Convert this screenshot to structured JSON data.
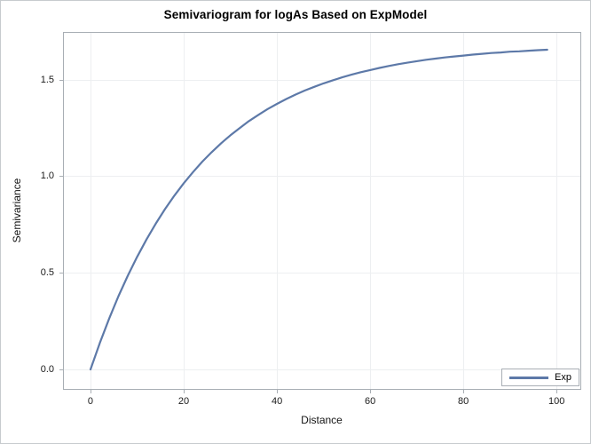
{
  "figure": {
    "title": "Semivariogram for logAs Based on ExpModel",
    "xlabel": "Distance",
    "ylabel": "Semivariance",
    "legend_label": "Exp"
  },
  "colors": {
    "curve": "#5d79a8",
    "axis_frame": "#a8aeb4",
    "gridline": "#edeff1",
    "outer_border": "#c7cbce",
    "title_text": "#000000",
    "tick_text": "#1a1a1a",
    "background": "#ffffff"
  },
  "chart_data": {
    "type": "line",
    "title": "Semivariogram for logAs Based on ExpModel",
    "xlabel": "Distance",
    "ylabel": "Semivariance",
    "xlim": [
      -5.9,
      105.1
    ],
    "ylim": [
      -0.101,
      1.746
    ],
    "xticks": [
      0,
      20,
      40,
      60,
      80,
      100
    ],
    "xtick_labels": [
      "0",
      "20",
      "40",
      "60",
      "80",
      "100"
    ],
    "yticks": [
      0,
      0.5,
      1,
      1.5
    ],
    "ytick_labels": [
      "0.0",
      "0.5",
      "1.0",
      "1.5"
    ],
    "grid": true,
    "legend_position": "inside-bottom-right",
    "series": [
      {
        "name": "Exp",
        "x": [
          0,
          2,
          4,
          6,
          8,
          10,
          12,
          14,
          16,
          18,
          20,
          22,
          24,
          26,
          28,
          30,
          32,
          34,
          36,
          38,
          40,
          42,
          44,
          46,
          48,
          50,
          52,
          54,
          56,
          58,
          60,
          62,
          64,
          66,
          68,
          70,
          72,
          74,
          76,
          78,
          80,
          82,
          84,
          86,
          88,
          90,
          92,
          94,
          96,
          98
        ],
        "y": [
          0.0,
          0.137,
          0.263,
          0.379,
          0.485,
          0.582,
          0.672,
          0.754,
          0.83,
          0.899,
          0.963,
          1.021,
          1.075,
          1.124,
          1.17,
          1.211,
          1.249,
          1.285,
          1.317,
          1.347,
          1.374,
          1.399,
          1.422,
          1.443,
          1.462,
          1.48,
          1.496,
          1.511,
          1.525,
          1.538,
          1.549,
          1.56,
          1.57,
          1.579,
          1.587,
          1.595,
          1.602,
          1.608,
          1.614,
          1.619,
          1.624,
          1.629,
          1.633,
          1.637,
          1.64,
          1.644,
          1.646,
          1.649,
          1.652,
          1.654
        ]
      }
    ]
  }
}
